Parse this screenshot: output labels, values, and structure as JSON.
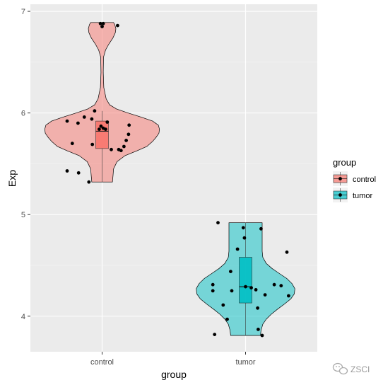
{
  "chart_data": {
    "type": "violin",
    "xlabel": "group",
    "ylabel": "Exp",
    "categories": [
      "control",
      "tumor"
    ],
    "ylim": [
      3.65,
      7.07
    ],
    "yticks": [
      4,
      5,
      6,
      7
    ],
    "grid": true,
    "legend": {
      "title": "group",
      "position": "right",
      "entries": [
        {
          "label": "control",
          "color": "#F8766D"
        },
        {
          "label": "tumor",
          "color": "#00BFC4"
        }
      ]
    },
    "series": [
      {
        "name": "control",
        "color": "#F8766D",
        "violin": {
          "ymin": 5.32,
          "ymax": 6.89,
          "profile": [
            [
              5.32,
              0.18
            ],
            [
              5.38,
              0.19
            ],
            [
              5.45,
              0.2
            ],
            [
              5.52,
              0.26
            ],
            [
              5.58,
              0.4
            ],
            [
              5.63,
              0.62
            ],
            [
              5.67,
              0.78
            ],
            [
              5.72,
              0.88
            ],
            [
              5.76,
              0.94
            ],
            [
              5.8,
              0.99
            ],
            [
              5.84,
              1.0
            ],
            [
              5.88,
              0.98
            ],
            [
              5.92,
              0.88
            ],
            [
              5.96,
              0.68
            ],
            [
              6.0,
              0.45
            ],
            [
              6.04,
              0.25
            ],
            [
              6.08,
              0.13
            ],
            [
              6.14,
              0.07
            ],
            [
              6.25,
              0.03
            ],
            [
              6.4,
              0.02
            ],
            [
              6.55,
              0.025
            ],
            [
              6.62,
              0.06
            ],
            [
              6.68,
              0.12
            ],
            [
              6.74,
              0.19
            ],
            [
              6.79,
              0.23
            ],
            [
              6.83,
              0.24
            ],
            [
              6.87,
              0.22
            ],
            [
              6.89,
              0.2
            ]
          ]
        },
        "box": {
          "q1": 5.65,
          "median": 5.82,
          "q3": 5.92,
          "whisker_low": 5.32,
          "whisker_high": 6.02
        },
        "points": [
          {
            "x": -0.61,
            "y": 5.92
          },
          {
            "x": -0.52,
            "y": 5.7
          },
          {
            "x": -0.61,
            "y": 5.43
          },
          {
            "x": -0.41,
            "y": 5.41
          },
          {
            "x": -0.42,
            "y": 5.9
          },
          {
            "x": -0.31,
            "y": 5.96
          },
          {
            "x": -0.23,
            "y": 5.32
          },
          {
            "x": -0.18,
            "y": 5.94
          },
          {
            "x": -0.17,
            "y": 5.69
          },
          {
            "x": -0.13,
            "y": 6.02
          },
          {
            "x": -0.03,
            "y": 6.88
          },
          {
            "x": 0.02,
            "y": 6.88
          },
          {
            "x": 0.0,
            "y": 6.85
          },
          {
            "x": 0.27,
            "y": 6.86
          },
          {
            "x": -0.02,
            "y": 5.87
          },
          {
            "x": -0.05,
            "y": 5.84
          },
          {
            "x": 0.02,
            "y": 5.85
          },
          {
            "x": 0.16,
            "y": 5.64
          },
          {
            "x": 0.29,
            "y": 5.64
          },
          {
            "x": 0.33,
            "y": 5.63
          },
          {
            "x": 0.38,
            "y": 5.67
          },
          {
            "x": 0.42,
            "y": 5.73
          },
          {
            "x": 0.46,
            "y": 5.79
          },
          {
            "x": 0.47,
            "y": 5.88
          },
          {
            "x": 0.09,
            "y": 5.91
          },
          {
            "x": 0.06,
            "y": 5.84
          }
        ]
      },
      {
        "name": "tumor",
        "color": "#00BFC4",
        "violin": {
          "ymin": 3.81,
          "ymax": 4.92,
          "profile": [
            [
              3.81,
              0.26
            ],
            [
              3.86,
              0.27
            ],
            [
              3.92,
              0.3
            ],
            [
              3.97,
              0.36
            ],
            [
              4.02,
              0.45
            ],
            [
              4.07,
              0.56
            ],
            [
              4.12,
              0.68
            ],
            [
              4.17,
              0.79
            ],
            [
              4.22,
              0.85
            ],
            [
              4.27,
              0.86
            ],
            [
              4.32,
              0.81
            ],
            [
              4.37,
              0.72
            ],
            [
              4.42,
              0.59
            ],
            [
              4.47,
              0.46
            ],
            [
              4.52,
              0.36
            ],
            [
              4.58,
              0.3
            ],
            [
              4.64,
              0.29
            ],
            [
              4.7,
              0.29
            ],
            [
              4.76,
              0.29
            ],
            [
              4.82,
              0.29
            ],
            [
              4.88,
              0.29
            ],
            [
              4.92,
              0.29
            ]
          ]
        },
        "box": {
          "q1": 4.13,
          "median": 4.29,
          "q3": 4.58,
          "whisker_low": 3.81,
          "whisker_high": 4.92
        },
        "points": [
          {
            "x": -0.57,
            "y": 4.31
          },
          {
            "x": -0.57,
            "y": 4.25
          },
          {
            "x": -0.54,
            "y": 3.82
          },
          {
            "x": -0.48,
            "y": 4.92
          },
          {
            "x": -0.39,
            "y": 4.11
          },
          {
            "x": -0.32,
            "y": 3.97
          },
          {
            "x": -0.26,
            "y": 4.44
          },
          {
            "x": -0.24,
            "y": 4.25
          },
          {
            "x": -0.14,
            "y": 4.66
          },
          {
            "x": -0.04,
            "y": 4.87
          },
          {
            "x": -0.02,
            "y": 4.77
          },
          {
            "x": 0.0,
            "y": 4.29
          },
          {
            "x": 0.1,
            "y": 4.28
          },
          {
            "x": 0.18,
            "y": 4.26
          },
          {
            "x": 0.21,
            "y": 4.08
          },
          {
            "x": 0.22,
            "y": 3.87
          },
          {
            "x": 0.27,
            "y": 4.86
          },
          {
            "x": 0.29,
            "y": 3.81
          },
          {
            "x": 0.34,
            "y": 4.21
          },
          {
            "x": 0.5,
            "y": 4.31
          },
          {
            "x": 0.62,
            "y": 4.3
          },
          {
            "x": 0.72,
            "y": 4.63
          },
          {
            "x": 0.75,
            "y": 4.2
          }
        ]
      }
    ]
  },
  "watermark": {
    "text": "ZSCI",
    "icon": "wechat-icon"
  }
}
